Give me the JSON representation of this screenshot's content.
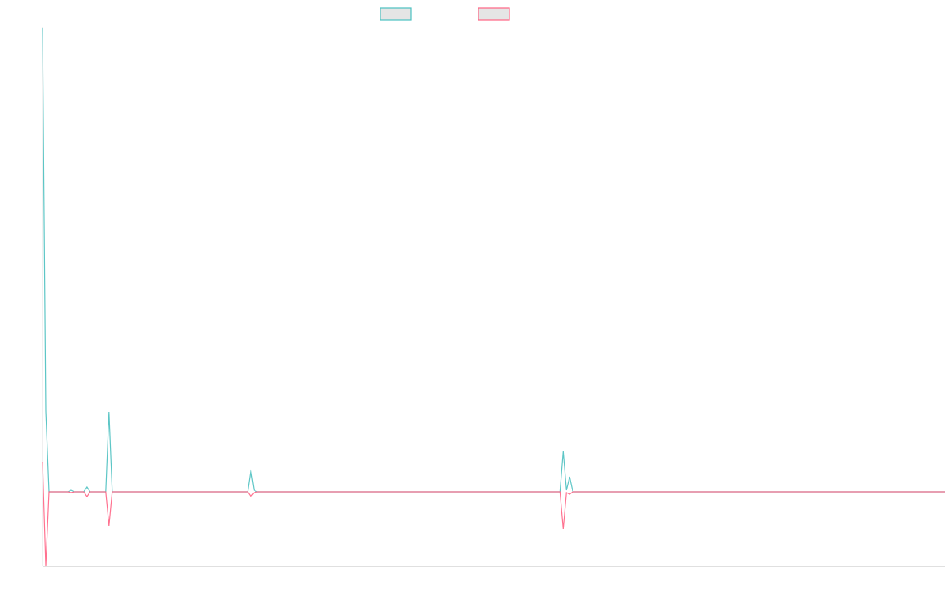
{
  "chart_data": {
    "type": "line",
    "title": "",
    "xlabel": "",
    "ylabel": "",
    "xlim": [
      0,
      286
    ],
    "ylim": [
      -94,
      586
    ],
    "grid": false,
    "legend": "top-center",
    "series": [
      {
        "color": "#4bc0c0",
        "points": [
          [
            0,
            586
          ],
          [
            1,
            102
          ],
          [
            2,
            0
          ],
          [
            8,
            0
          ],
          [
            9,
            2
          ],
          [
            10,
            0
          ],
          [
            13,
            0
          ],
          [
            14,
            6
          ],
          [
            15,
            0
          ],
          [
            20,
            0
          ],
          [
            21,
            101
          ],
          [
            22,
            0
          ],
          [
            65,
            0
          ],
          [
            66,
            28
          ],
          [
            67,
            2
          ],
          [
            68,
            0
          ],
          [
            164,
            0
          ],
          [
            165,
            51
          ],
          [
            166,
            2
          ],
          [
            167,
            19
          ],
          [
            168,
            0
          ],
          [
            286,
            0
          ]
        ]
      },
      {
        "color": "#ff6384",
        "points": [
          [
            0,
            38
          ],
          [
            1,
            -94
          ],
          [
            2,
            0
          ],
          [
            8,
            0
          ],
          [
            9,
            -1
          ],
          [
            10,
            0
          ],
          [
            13,
            0
          ],
          [
            14,
            -6
          ],
          [
            15,
            0
          ],
          [
            20,
            0
          ],
          [
            21,
            -43
          ],
          [
            22,
            0
          ],
          [
            65,
            0
          ],
          [
            66,
            -6
          ],
          [
            67,
            -1
          ],
          [
            68,
            0
          ],
          [
            164,
            0
          ],
          [
            165,
            -47
          ],
          [
            166,
            -1
          ],
          [
            167,
            -3
          ],
          [
            168,
            0
          ],
          [
            286,
            0
          ]
        ]
      }
    ]
  }
}
